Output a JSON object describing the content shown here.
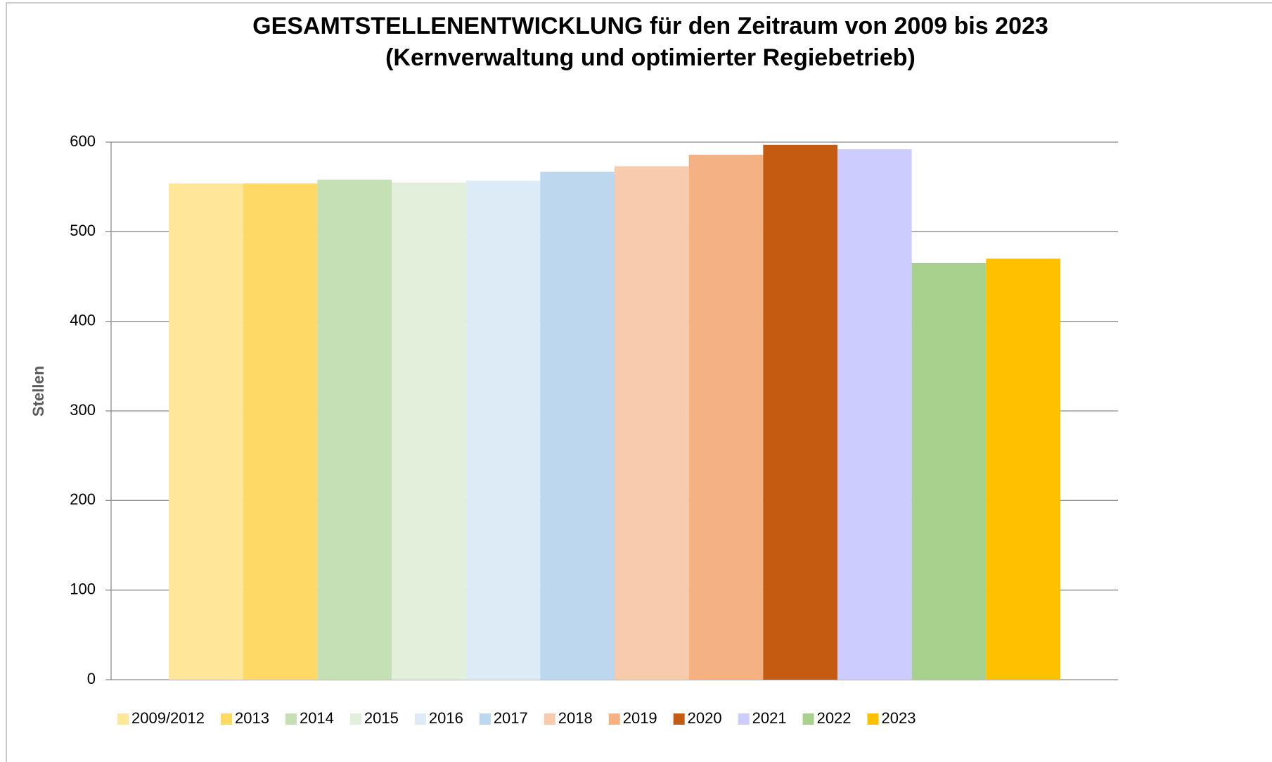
{
  "chart_data": {
    "type": "bar",
    "title": "GESAMTSTELLENENTWICKLUNG für den Zeitraum von 2009 bis 2023",
    "subtitle": "(Kernverwaltung und optimierter Regiebetrieb)",
    "y_label": "Stellen",
    "series": [
      {
        "name": "2009/2012",
        "color": "#FFE699",
        "values": [
          554
        ]
      },
      {
        "name": "2013",
        "color": "#FFD966",
        "values": [
          554
        ]
      },
      {
        "name": "2014",
        "color": "#C5E0B4",
        "values": [
          558
        ]
      },
      {
        "name": "2015",
        "color": "#E2EFDA",
        "values": [
          555
        ]
      },
      {
        "name": "2016",
        "color": "#DDEBF7",
        "values": [
          557
        ]
      },
      {
        "name": "2017",
        "color": "#BDD7EE",
        "values": [
          567
        ]
      },
      {
        "name": "2018",
        "color": "#F8CBAD",
        "values": [
          573
        ]
      },
      {
        "name": "2019",
        "color": "#F4B183",
        "values": [
          586
        ]
      },
      {
        "name": "2020",
        "color": "#C55A11",
        "values": [
          597
        ]
      },
      {
        "name": "2021",
        "color": "#CCCCFF",
        "values": [
          592
        ]
      },
      {
        "name": "2022",
        "color": "#A9D18E",
        "values": [
          465
        ]
      },
      {
        "name": "2023",
        "color": "#FFC000",
        "values": [
          470
        ]
      }
    ],
    "ylim": [
      0,
      600
    ],
    "yticks": [
      0,
      100,
      200,
      300,
      400,
      500,
      600
    ],
    "grid": true,
    "legend": "bottom"
  }
}
